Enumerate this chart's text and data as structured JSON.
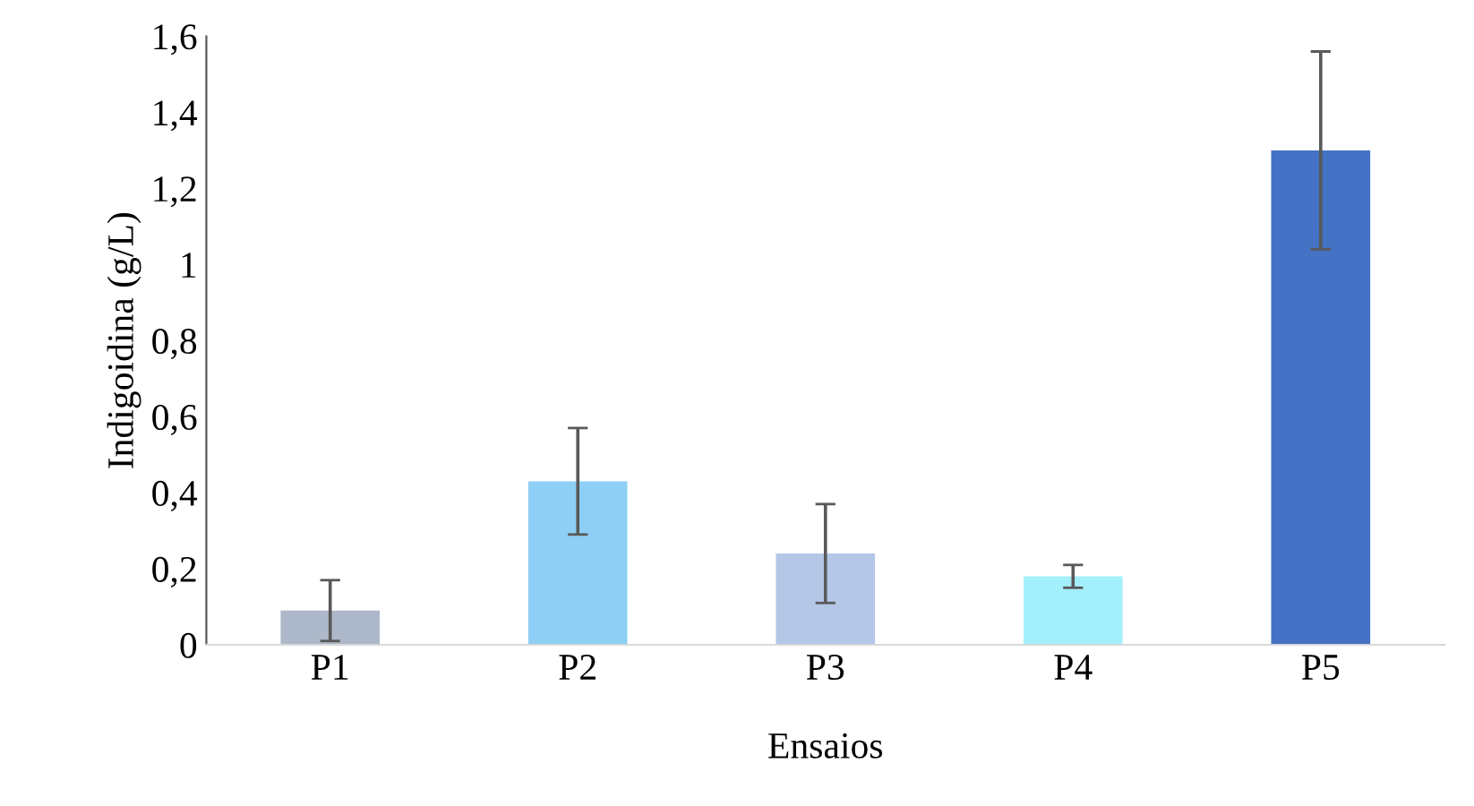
{
  "chart_data": {
    "type": "bar",
    "xlabel": "Ensaios",
    "ylabel": "Indigoidina (g/L)",
    "categories": [
      "P1",
      "P2",
      "P3",
      "P4",
      "P5"
    ],
    "values": [
      0.09,
      0.43,
      0.24,
      0.18,
      1.3
    ],
    "errors": [
      0.08,
      0.14,
      0.13,
      0.03,
      0.26
    ],
    "colors": [
      "#adb9ca",
      "#8ecff5",
      "#b4c7e7",
      "#a3f0fc",
      "#4472c4"
    ],
    "ylim": [
      0,
      1.6
    ],
    "yticks": [
      0,
      {
        "value": 0.2,
        "label": "0,2"
      },
      {
        "value": 0.4,
        "label": "0,4"
      },
      {
        "value": 0.6,
        "label": "0,6"
      },
      {
        "value": 0.8,
        "label": "0,8"
      },
      1,
      {
        "value": 1.2,
        "label": "1,2"
      },
      {
        "value": 1.4,
        "label": "1,4"
      },
      {
        "value": 1.6,
        "label": "1,6"
      }
    ],
    "grid": false,
    "legend": false
  }
}
